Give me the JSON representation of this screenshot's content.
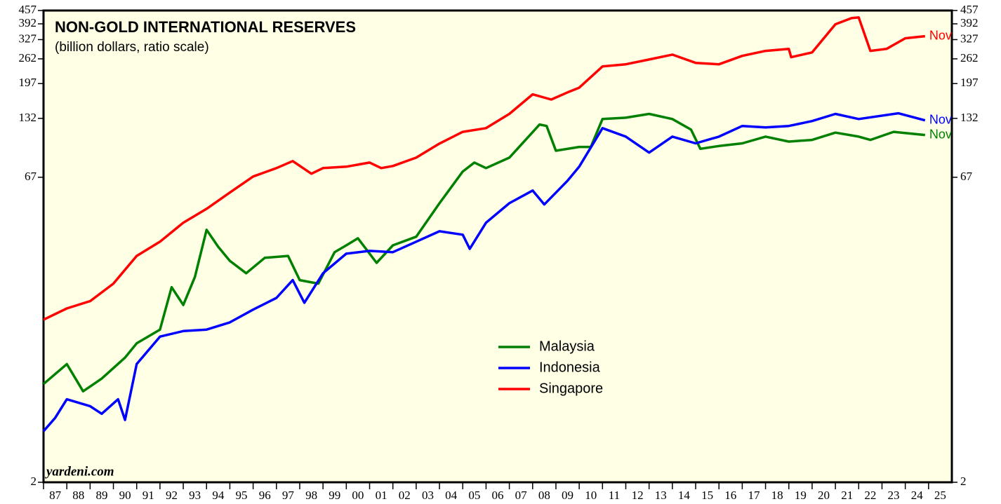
{
  "chart_data": {
    "type": "line",
    "title": "NON-GOLD INTERNATIONAL RESERVES",
    "subtitle": "(billion dollars, ratio scale)",
    "source": "yardeni.com",
    "yscale": "log",
    "ylim": [
      2,
      457
    ],
    "yticks": [
      2,
      67,
      132,
      197,
      262,
      327,
      392,
      457
    ],
    "xlim": [
      1987,
      2026
    ],
    "xticks": [
      {
        "value": 1987,
        "label": "87"
      },
      {
        "value": 1988,
        "label": "88"
      },
      {
        "value": 1989,
        "label": "89"
      },
      {
        "value": 1990,
        "label": "90"
      },
      {
        "value": 1991,
        "label": "91"
      },
      {
        "value": 1992,
        "label": "92"
      },
      {
        "value": 1993,
        "label": "93"
      },
      {
        "value": 1994,
        "label": "94"
      },
      {
        "value": 1995,
        "label": "95"
      },
      {
        "value": 1996,
        "label": "96"
      },
      {
        "value": 1997,
        "label": "97"
      },
      {
        "value": 1998,
        "label": "98"
      },
      {
        "value": 1999,
        "label": "99"
      },
      {
        "value": 2000,
        "label": "00"
      },
      {
        "value": 2001,
        "label": "01"
      },
      {
        "value": 2002,
        "label": "02"
      },
      {
        "value": 2003,
        "label": "03"
      },
      {
        "value": 2004,
        "label": "04"
      },
      {
        "value": 2005,
        "label": "05"
      },
      {
        "value": 2006,
        "label": "06"
      },
      {
        "value": 2007,
        "label": "07"
      },
      {
        "value": 2008,
        "label": "08"
      },
      {
        "value": 2009,
        "label": "09"
      },
      {
        "value": 2010,
        "label": "10"
      },
      {
        "value": 2011,
        "label": "11"
      },
      {
        "value": 2012,
        "label": "12"
      },
      {
        "value": 2013,
        "label": "13"
      },
      {
        "value": 2014,
        "label": "14"
      },
      {
        "value": 2015,
        "label": "15"
      },
      {
        "value": 2016,
        "label": "16"
      },
      {
        "value": 2017,
        "label": "17"
      },
      {
        "value": 2018,
        "label": "18"
      },
      {
        "value": 2019,
        "label": "19"
      },
      {
        "value": 2020,
        "label": "20"
      },
      {
        "value": 2021,
        "label": "21"
      },
      {
        "value": 2022,
        "label": "22"
      },
      {
        "value": 2023,
        "label": "23"
      },
      {
        "value": 2024,
        "label": "24"
      },
      {
        "value": 2025,
        "label": "25"
      }
    ],
    "series": [
      {
        "name": "Malaysia",
        "color": "#008000",
        "end_label": "Nov",
        "x": [
          1987,
          1988,
          1988.7,
          1989.5,
          1990.5,
          1991,
          1992,
          1992.5,
          1993,
          1993.5,
          1994,
          1994.5,
          1995,
          1995.7,
          1996.5,
          1997.5,
          1998,
          1998.8,
          1999.5,
          2000,
          2000.5,
          2001.3,
          2002,
          2003,
          2004,
          2005,
          2005.5,
          2006,
          2007,
          2008.3,
          2008.6,
          2009,
          2010,
          2010.5,
          2011,
          2012,
          2013,
          2014,
          2014.8,
          2015.2,
          2016,
          2017,
          2018,
          2019,
          2020,
          2021,
          2022,
          2022.5,
          2023.5,
          2024.85
        ],
        "values": [
          6.2,
          7.8,
          5.7,
          6.6,
          8.4,
          9.9,
          11.6,
          18.9,
          15.4,
          21.3,
          36.6,
          30.1,
          25.6,
          22.2,
          26.5,
          27.1,
          20.5,
          19.7,
          28.3,
          30.6,
          33.2,
          25,
          30.6,
          33.8,
          49.7,
          71.6,
          79.4,
          74.5,
          84,
          123,
          121,
          91,
          95,
          95,
          131,
          133,
          139,
          131,
          116,
          93,
          96,
          99,
          107,
          101,
          103,
          112,
          107,
          103,
          113,
          109
        ]
      },
      {
        "name": "Indonesia",
        "color": "#0000ff",
        "end_label": "Nov",
        "x": [
          1987,
          1987.5,
          1988,
          1989,
          1989.5,
          1990.2,
          1990.5,
          1991,
          1992,
          1993,
          1994,
          1995,
          1996,
          1997,
          1997.7,
          1998.2,
          1999,
          2000,
          2001,
          2002,
          2003,
          2004,
          2005,
          2005.3,
          2006,
          2007,
          2008,
          2008.5,
          2009.5,
          2010,
          2011,
          2012,
          2013,
          2014,
          2015,
          2016,
          2017,
          2018,
          2019,
          2020,
          2021,
          2022,
          2023.7,
          2024.85
        ],
        "values": [
          3.6,
          4.2,
          5.2,
          4.8,
          4.4,
          5.2,
          4.1,
          7.8,
          10.7,
          11.4,
          11.6,
          12.6,
          14.6,
          16.7,
          20.5,
          15.8,
          22.2,
          27.8,
          28.7,
          28.3,
          31.9,
          36,
          34.6,
          29.4,
          39.7,
          49.7,
          57.5,
          49,
          64.4,
          75.7,
          118,
          107,
          89,
          107,
          99,
          107,
          121,
          119,
          121,
          128,
          139,
          131,
          140,
          129
        ]
      },
      {
        "name": "Singapore",
        "color": "#ff0000",
        "end_label": "Nov",
        "x": [
          1987,
          1988,
          1989,
          1990,
          1991,
          1992,
          1993,
          1994,
          1995,
          1996,
          1997,
          1997.7,
          1998.5,
          1999,
          2000,
          2001,
          2001.5,
          2002,
          2003,
          2004,
          2005,
          2006,
          2007,
          2008,
          2008.8,
          2009.5,
          2010,
          2011,
          2012,
          2013,
          2014,
          2015,
          2016,
          2017,
          2018,
          2019,
          2019.1,
          2020,
          2021,
          2021.7,
          2022,
          2022.5,
          2023.2,
          2024,
          2024.85
        ],
        "values": [
          13,
          14.8,
          16.1,
          19.7,
          27.1,
          31.9,
          39.7,
          46.6,
          56.2,
          67.6,
          74.5,
          80.7,
          69.8,
          74.5,
          75.7,
          79.4,
          74.5,
          76.3,
          84,
          98.8,
          113,
          118,
          139,
          174,
          164,
          178,
          188,
          240,
          246,
          260,
          275,
          250,
          246,
          271,
          287,
          294,
          267,
          282,
          390,
          419,
          422,
          287,
          294,
          332,
          340
        ]
      }
    ]
  }
}
